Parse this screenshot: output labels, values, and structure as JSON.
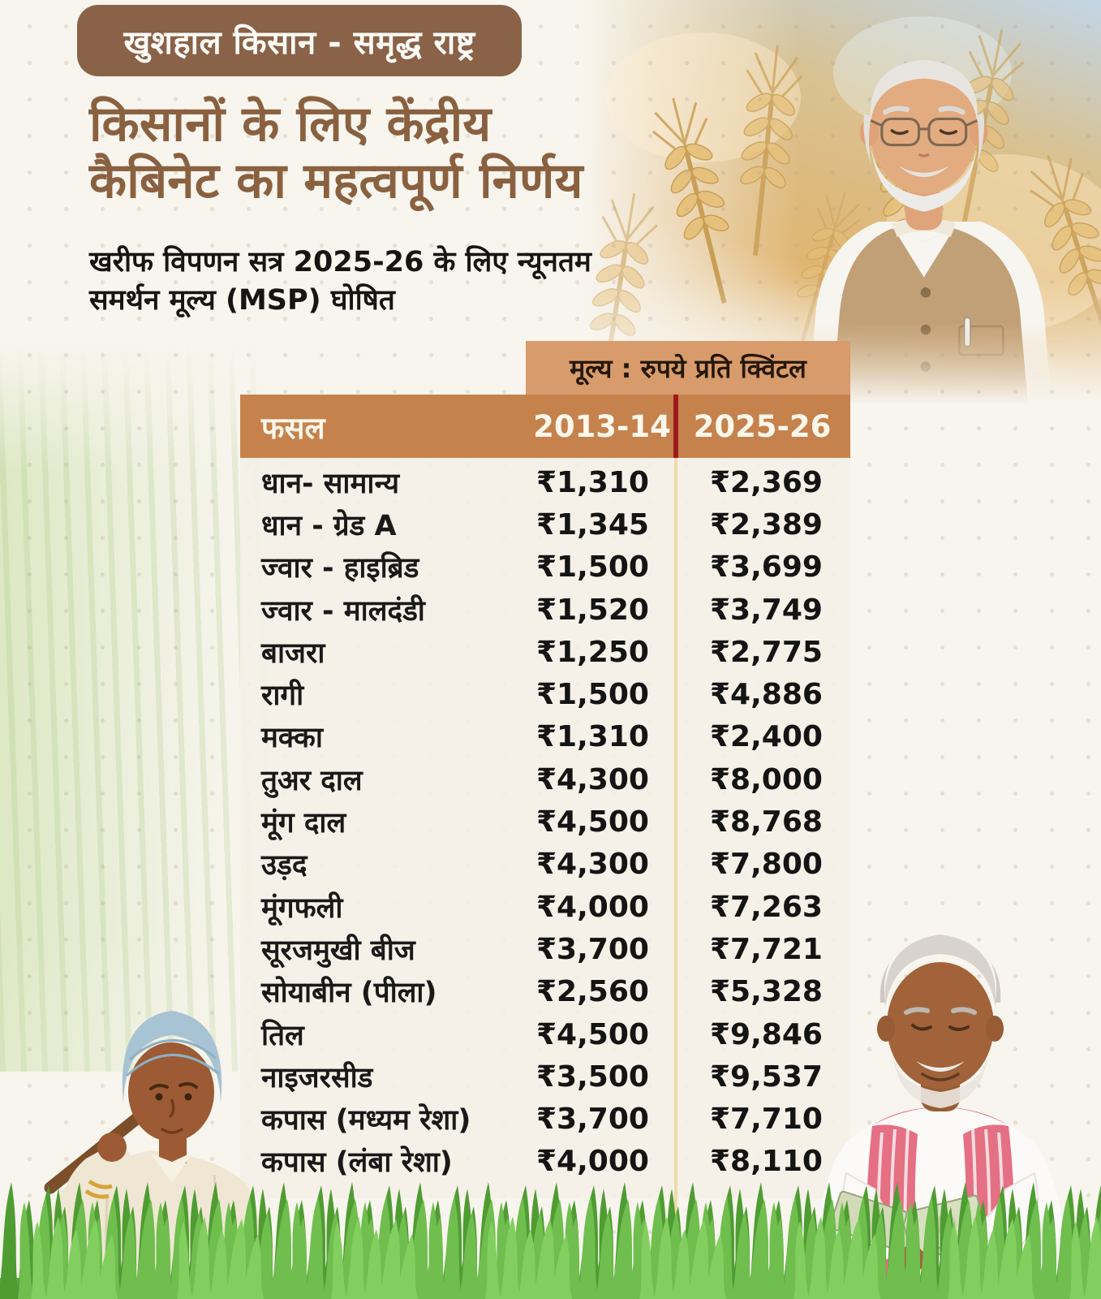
{
  "header": {
    "badge": "खुशहाल किसान - समृद्ध राष्ट्र",
    "title_line1": "किसानों के लिए केंद्रीय",
    "title_line2": "कैबिनेट का महत्वपूर्ण निर्णय",
    "subtitle_line1": "खरीफ विपणन सत्र 2025-26 के लिए न्यूनतम",
    "subtitle_line2": "समर्थन मूल्य (MSP) घोषित"
  },
  "table": {
    "unit_header": "मूल्य : रुपये प्रति क्विंटल",
    "columns": [
      "फसल",
      "2013-14",
      "2025-26"
    ],
    "rows": [
      {
        "crop": "धान- सामान्य",
        "y2013": "₹1,310",
        "y2025": "₹2,369"
      },
      {
        "crop": "धान - ग्रेड A",
        "y2013": "₹1,345",
        "y2025": "₹2,389"
      },
      {
        "crop": "ज्वार - हाइब्रिड",
        "y2013": "₹1,500",
        "y2025": "₹3,699"
      },
      {
        "crop": "ज्वार - मालदंडी",
        "y2013": "₹1,520",
        "y2025": "₹3,749"
      },
      {
        "crop": "बाजरा",
        "y2013": "₹1,250",
        "y2025": "₹2,775"
      },
      {
        "crop": "रागी",
        "y2013": "₹1,500",
        "y2025": "₹4,886"
      },
      {
        "crop": "मक्का",
        "y2013": "₹1,310",
        "y2025": "₹2,400"
      },
      {
        "crop": "तुअर दाल",
        "y2013": "₹4,300",
        "y2025": "₹8,000"
      },
      {
        "crop": "मूंग दाल",
        "y2013": "₹4,500",
        "y2025": "₹8,768"
      },
      {
        "crop": "उड़द",
        "y2013": "₹4,300",
        "y2025": "₹7,800"
      },
      {
        "crop": "मूंगफली",
        "y2013": "₹4,000",
        "y2025": "₹7,263"
      },
      {
        "crop": "सूरजमुखी बीज",
        "y2013": "₹3,700",
        "y2025": "₹7,721"
      },
      {
        "crop": "सोयाबीन (पीला)",
        "y2013": "₹2,560",
        "y2025": "₹5,328"
      },
      {
        "crop": "तिल",
        "y2013": "₹4,500",
        "y2025": "₹9,846"
      },
      {
        "crop": "नाइजरसीड",
        "y2013": "₹3,500",
        "y2025": "₹9,537"
      },
      {
        "crop": "कपास (मध्यम रेशा)",
        "y2013": "₹3,700",
        "y2025": "₹7,710"
      },
      {
        "crop": "कपास (लंबा रेशा)",
        "y2013": "₹4,000",
        "y2025": "₹8,110"
      }
    ]
  },
  "chart_data": {
    "type": "table",
    "title": "मूल्य : रुपये प्रति क्विंटल",
    "categories": [
      "धान- सामान्य",
      "धान - ग्रेड A",
      "ज्वार - हाइब्रिड",
      "ज्वार - मालदंडी",
      "बाजरा",
      "रागी",
      "मक्का",
      "तुअर दाल",
      "मूंग दाल",
      "उड़द",
      "मूंगफली",
      "सूरजमुखी बीज",
      "सोयाबीन (पीला)",
      "तिल",
      "नाइजरसीड",
      "कपास (मध्यम रेशा)",
      "कपास (लंबा रेशा)"
    ],
    "series": [
      {
        "name": "2013-14",
        "values": [
          1310,
          1345,
          1500,
          1520,
          1250,
          1500,
          1310,
          4300,
          4500,
          4300,
          4000,
          3700,
          2560,
          4500,
          3500,
          3700,
          4000
        ]
      },
      {
        "name": "2025-26",
        "values": [
          2369,
          2389,
          3699,
          3749,
          2775,
          4886,
          2400,
          8000,
          8768,
          7800,
          7263,
          7721,
          5328,
          9846,
          9537,
          7710,
          8110
        ]
      }
    ],
    "unit": "रुपये प्रति क्विंटल"
  },
  "images": {
    "pm_portrait": "pm-modi-in-wheat-field",
    "woman_farmer": "woman-farmer-with-tool",
    "man_counting_money": "farmer-counting-currency-notes",
    "grass": "green-grass-strip"
  },
  "colors": {
    "badge_brown": "#8a6247",
    "title_brown": "#8a6140",
    "unit_box_tan": "#d89b6b",
    "header_orange": "#c5824c",
    "divider_red": "#9e1b1b",
    "divider_tan": "#ecdcab",
    "panel_cream": "#f5f0e7",
    "grass_green": "#5fae3c"
  }
}
